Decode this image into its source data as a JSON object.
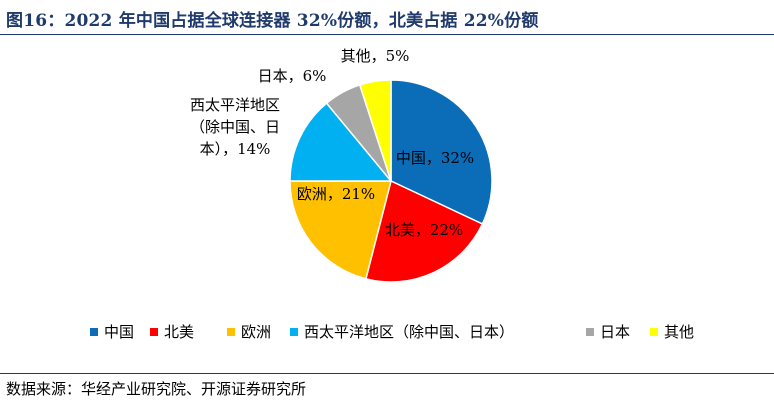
{
  "header": {
    "title": "图16：2022 年中国占据全球连接器 32%份额，北美占据 22%份额"
  },
  "footer": {
    "source": "数据来源：华经产业研究院、开源证券研究所"
  },
  "chart_data": {
    "type": "pie",
    "title": "",
    "legend_position": "bottom",
    "slices": [
      {
        "name": "中国",
        "value": 32,
        "color": "#0b6cb8",
        "label": [
          "中国，32%"
        ]
      },
      {
        "name": "北美",
        "value": 22,
        "color": "#ff0000",
        "label": [
          "北美，22%"
        ]
      },
      {
        "name": "欧洲",
        "value": 21,
        "color": "#ffc000",
        "label": [
          "欧洲，21%"
        ]
      },
      {
        "name": "西太平洋地区（除中国、日本）",
        "value": 14,
        "color": "#00b0f0",
        "label": [
          "西太平洋地区",
          "（除中国、日",
          "本），14%"
        ]
      },
      {
        "name": "日本",
        "value": 6,
        "color": "#a6a6a6",
        "label": [
          "日本，6%"
        ]
      },
      {
        "name": "其他",
        "value": 5,
        "color": "#ffff00",
        "label": [
          "其他，5%"
        ]
      }
    ]
  }
}
